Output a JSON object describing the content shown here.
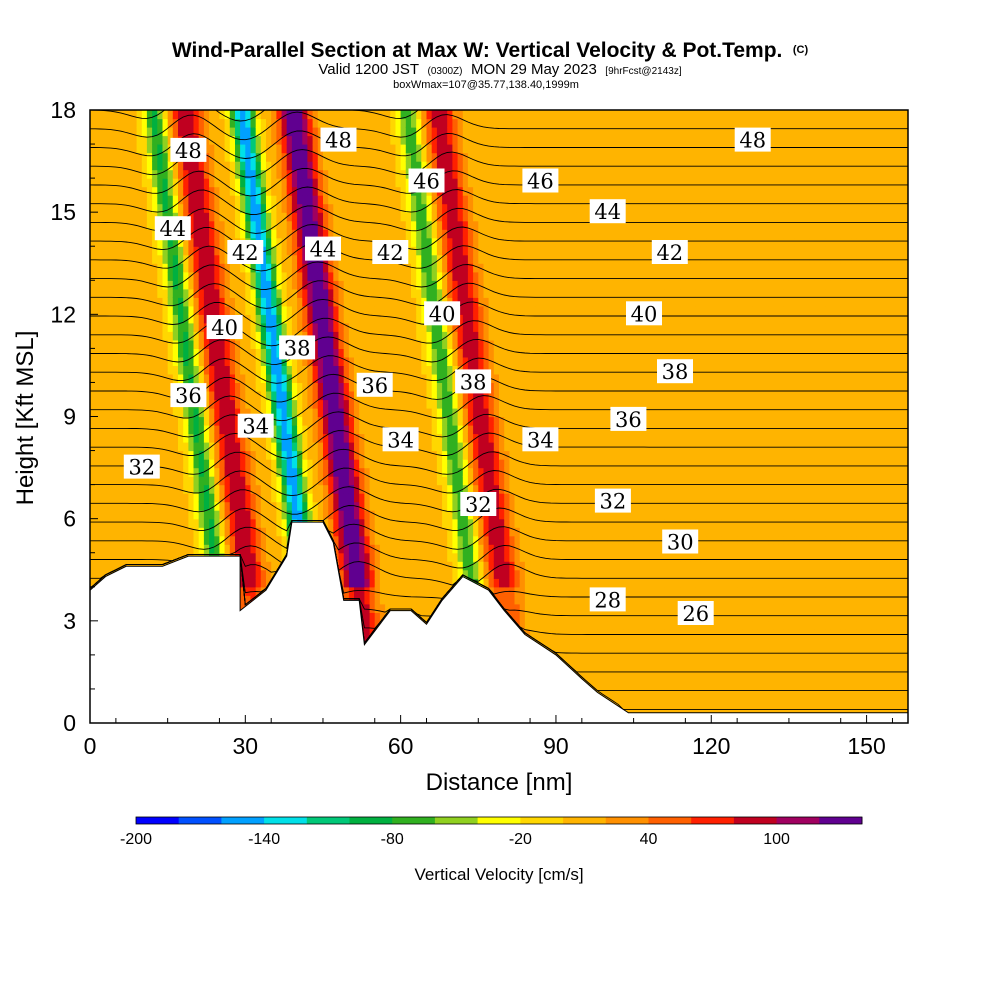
{
  "chart_data": {
    "type": "heatmap",
    "title": "Wind-Parallel Section at Max W: Vertical Velocity & Pot.Temp.",
    "title_mark": "(C)",
    "subtitle": {
      "pre": "Valid 1200 JST",
      "utc": "(0300Z)",
      "date": "MON 29 May 2023",
      "fcst": "[9hrFcst@2143z]"
    },
    "subtitle2": "boxWmax=107@35.77,138.40,1999m",
    "xlabel": "Distance [nm]",
    "ylabel": "Height [Kft MSL]",
    "xlim": [
      0,
      158
    ],
    "ylim": [
      0,
      18
    ],
    "xticks": [
      0,
      30,
      60,
      90,
      120,
      150
    ],
    "yticks": [
      0,
      3,
      6,
      9,
      12,
      15,
      18
    ],
    "colorbar": {
      "label": "Vertical Velocity [cm/s]",
      "ticks": [
        -200,
        -140,
        -80,
        -20,
        40,
        100
      ],
      "range": [
        -200,
        140
      ],
      "colors": [
        "#0000ff",
        "#0050ff",
        "#00a0ff",
        "#00e0e8",
        "#00c878",
        "#00b040",
        "#30b020",
        "#90d020",
        "#ffff00",
        "#ffd700",
        "#ffb400",
        "#ff9000",
        "#ff6000",
        "#ff2000",
        "#c00020",
        "#a00060",
        "#600090"
      ]
    },
    "background_w": 5,
    "updrafts": [
      {
        "x": 30,
        "w": 95
      },
      {
        "x": 51,
        "w": 140
      },
      {
        "x": 79,
        "w": 90
      }
    ],
    "downdrafts": [
      {
        "x": 41,
        "w": -160
      },
      {
        "x": 73,
        "w": -80
      },
      {
        "x": 24,
        "w": -90
      }
    ],
    "terrain": [
      [
        0,
        3.9
      ],
      [
        3,
        4.3
      ],
      [
        7,
        4.6
      ],
      [
        14,
        4.6
      ],
      [
        19,
        4.9
      ],
      [
        29,
        4.9
      ],
      [
        29,
        3.3
      ],
      [
        34,
        3.9
      ],
      [
        38,
        4.9
      ],
      [
        39,
        5.9
      ],
      [
        45,
        5.9
      ],
      [
        47,
        5.3
      ],
      [
        49,
        3.6
      ],
      [
        52,
        3.6
      ],
      [
        53,
        2.3
      ],
      [
        58,
        3.3
      ],
      [
        62,
        3.3
      ],
      [
        65,
        2.9
      ],
      [
        68,
        3.6
      ],
      [
        72,
        4.3
      ],
      [
        77,
        3.9
      ],
      [
        80,
        3.3
      ],
      [
        84,
        2.6
      ],
      [
        87,
        2.3
      ],
      [
        90,
        2.0
      ],
      [
        95,
        1.3
      ],
      [
        98,
        0.9
      ],
      [
        104,
        0.3
      ],
      [
        158,
        0.3
      ]
    ],
    "isentrope_labels": [
      {
        "text": "48",
        "x": 19,
        "y": 16.8
      },
      {
        "text": "48",
        "x": 48,
        "y": 17.1
      },
      {
        "text": "48",
        "x": 128,
        "y": 17.1
      },
      {
        "text": "46",
        "x": 65,
        "y": 15.9
      },
      {
        "text": "46",
        "x": 87,
        "y": 15.9
      },
      {
        "text": "44",
        "x": 16,
        "y": 14.5
      },
      {
        "text": "44",
        "x": 45,
        "y": 13.9
      },
      {
        "text": "44",
        "x": 100,
        "y": 15.0
      },
      {
        "text": "42",
        "x": 30,
        "y": 13.8
      },
      {
        "text": "42",
        "x": 58,
        "y": 13.8
      },
      {
        "text": "42",
        "x": 112,
        "y": 13.8
      },
      {
        "text": "40",
        "x": 26,
        "y": 11.6
      },
      {
        "text": "40",
        "x": 68,
        "y": 12.0
      },
      {
        "text": "40",
        "x": 107,
        "y": 12.0
      },
      {
        "text": "38",
        "x": 40,
        "y": 11.0
      },
      {
        "text": "38",
        "x": 74,
        "y": 10.0
      },
      {
        "text": "38",
        "x": 113,
        "y": 10.3
      },
      {
        "text": "36",
        "x": 19,
        "y": 9.6
      },
      {
        "text": "36",
        "x": 55,
        "y": 9.9
      },
      {
        "text": "36",
        "x": 104,
        "y": 8.9
      },
      {
        "text": "34",
        "x": 32,
        "y": 8.7
      },
      {
        "text": "34",
        "x": 60,
        "y": 8.3
      },
      {
        "text": "34",
        "x": 87,
        "y": 8.3
      },
      {
        "text": "32",
        "x": 10,
        "y": 7.5
      },
      {
        "text": "32",
        "x": 75,
        "y": 6.4
      },
      {
        "text": "32",
        "x": 101,
        "y": 6.5
      },
      {
        "text": "30",
        "x": 114,
        "y": 5.3
      },
      {
        "text": "28",
        "x": 100,
        "y": 3.6
      },
      {
        "text": "26",
        "x": 117,
        "y": 3.2
      }
    ]
  }
}
